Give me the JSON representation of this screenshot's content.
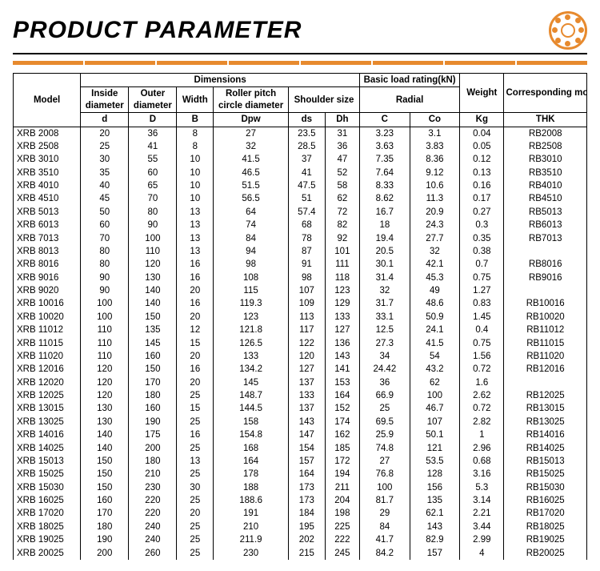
{
  "title": "PRODUCT PARAMETER",
  "headers": {
    "model": "Model",
    "dimensions": "Dimensions",
    "basic_load": "Basic load rating(kN)",
    "weight": "Weight",
    "corresponding": "Corresponding model",
    "inside_diameter": "Inside diameter",
    "outer_diameter": "Outer diameter",
    "width": "Width",
    "roller_pitch": "Roller pitch circle diameter",
    "shoulder_size": "Shoulder size",
    "radial": "Radial",
    "d": "d",
    "D": "D",
    "B": "B",
    "Dpw": "Dpw",
    "ds": "ds",
    "Dh": "Dh",
    "C": "C",
    "Co": "Co",
    "Kg": "Kg",
    "THK": "THK"
  },
  "rows": [
    [
      "XRB 2008",
      "20",
      "36",
      "8",
      "27",
      "23.5",
      "31",
      "3.23",
      "3.1",
      "0.04",
      "RB2008"
    ],
    [
      "XRB 2508",
      "25",
      "41",
      "8",
      "32",
      "28.5",
      "36",
      "3.63",
      "3.83",
      "0.05",
      "RB2508"
    ],
    [
      "XRB 3010",
      "30",
      "55",
      "10",
      "41.5",
      "37",
      "47",
      "7.35",
      "8.36",
      "0.12",
      "RB3010"
    ],
    [
      "XRB 3510",
      "35",
      "60",
      "10",
      "46.5",
      "41",
      "52",
      "7.64",
      "9.12",
      "0.13",
      "RB3510"
    ],
    [
      "XRB 4010",
      "40",
      "65",
      "10",
      "51.5",
      "47.5",
      "58",
      "8.33",
      "10.6",
      "0.16",
      "RB4010"
    ],
    [
      "XRB 4510",
      "45",
      "70",
      "10",
      "56.5",
      "51",
      "62",
      "8.62",
      "11.3",
      "0.17",
      "RB4510"
    ],
    [
      "XRB 5013",
      "50",
      "80",
      "13",
      "64",
      "57.4",
      "72",
      "16.7",
      "20.9",
      "0.27",
      "RB5013"
    ],
    [
      "XRB 6013",
      "60",
      "90",
      "13",
      "74",
      "68",
      "82",
      "18",
      "24.3",
      "0.3",
      "RB6013"
    ],
    [
      "XRB 7013",
      "70",
      "100",
      "13",
      "84",
      "78",
      "92",
      "19.4",
      "27.7",
      "0.35",
      "RB7013"
    ],
    [
      "XRB 8013",
      "80",
      "110",
      "13",
      "94",
      "87",
      "101",
      "20.5",
      "32",
      "0.38",
      ""
    ],
    [
      "XRB 8016",
      "80",
      "120",
      "16",
      "98",
      "91",
      "111",
      "30.1",
      "42.1",
      "0.7",
      "RB8016"
    ],
    [
      "XRB 9016",
      "90",
      "130",
      "16",
      "108",
      "98",
      "118",
      "31.4",
      "45.3",
      "0.75",
      "RB9016"
    ],
    [
      "XRB 9020",
      "90",
      "140",
      "20",
      "115",
      "107",
      "123",
      "32",
      "49",
      "1.27",
      ""
    ],
    [
      "XRB 10016",
      "100",
      "140",
      "16",
      "119.3",
      "109",
      "129",
      "31.7",
      "48.6",
      "0.83",
      "RB10016"
    ],
    [
      "XRB 10020",
      "100",
      "150",
      "20",
      "123",
      "113",
      "133",
      "33.1",
      "50.9",
      "1.45",
      "RB10020"
    ],
    [
      "XRB 11012",
      "110",
      "135",
      "12",
      "121.8",
      "117",
      "127",
      "12.5",
      "24.1",
      "0.4",
      "RB11012"
    ],
    [
      "XRB 11015",
      "110",
      "145",
      "15",
      "126.5",
      "122",
      "136",
      "27.3",
      "41.5",
      "0.75",
      "RB11015"
    ],
    [
      "XRB 11020",
      "110",
      "160",
      "20",
      "133",
      "120",
      "143",
      "34",
      "54",
      "1.56",
      "RB11020"
    ],
    [
      "XRB 12016",
      "120",
      "150",
      "16",
      "134.2",
      "127",
      "141",
      "24.42",
      "43.2",
      "0.72",
      "RB12016"
    ],
    [
      "XRB 12020",
      "120",
      "170",
      "20",
      "145",
      "137",
      "153",
      "36",
      "62",
      "1.6",
      ""
    ],
    [
      "XRB 12025",
      "120",
      "180",
      "25",
      "148.7",
      "133",
      "164",
      "66.9",
      "100",
      "2.62",
      "RB12025"
    ],
    [
      "XRB 13015",
      "130",
      "160",
      "15",
      "144.5",
      "137",
      "152",
      "25",
      "46.7",
      "0.72",
      "RB13015"
    ],
    [
      "XRB 13025",
      "130",
      "190",
      "25",
      "158",
      "143",
      "174",
      "69.5",
      "107",
      "2.82",
      "RB13025"
    ],
    [
      "XRB 14016",
      "140",
      "175",
      "16",
      "154.8",
      "147",
      "162",
      "25.9",
      "50.1",
      "1",
      "RB14016"
    ],
    [
      "XRB 14025",
      "140",
      "200",
      "25",
      "168",
      "154",
      "185",
      "74.8",
      "121",
      "2.96",
      "RB14025"
    ],
    [
      "XRB 15013",
      "150",
      "180",
      "13",
      "164",
      "157",
      "172",
      "27",
      "53.5",
      "0.68",
      "RB15013"
    ],
    [
      "XRB 15025",
      "150",
      "210",
      "25",
      "178",
      "164",
      "194",
      "76.8",
      "128",
      "3.16",
      "RB15025"
    ],
    [
      "XRB 15030",
      "150",
      "230",
      "30",
      "188",
      "173",
      "211",
      "100",
      "156",
      "5.3",
      "RB15030"
    ],
    [
      "XRB 16025",
      "160",
      "220",
      "25",
      "188.6",
      "173",
      "204",
      "81.7",
      "135",
      "3.14",
      "RB16025"
    ],
    [
      "XRB 17020",
      "170",
      "220",
      "20",
      "191",
      "184",
      "198",
      "29",
      "62.1",
      "2.21",
      "RB17020"
    ],
    [
      "XRB 18025",
      "180",
      "240",
      "25",
      "210",
      "195",
      "225",
      "84",
      "143",
      "3.44",
      "RB18025"
    ],
    [
      "XRB 19025",
      "190",
      "240",
      "25",
      "211.9",
      "202",
      "222",
      "41.7",
      "82.9",
      "2.99",
      "RB19025"
    ],
    [
      "XRB 20025",
      "200",
      "260",
      "25",
      "230",
      "215",
      "245",
      "84.2",
      "157",
      "4",
      "RB20025"
    ]
  ],
  "style": {
    "accent": "#e78a2e",
    "border": "#000000",
    "background": "#ffffff",
    "font_family": "Arial",
    "title_fontsize": 30,
    "cell_fontsize": 11.5
  }
}
